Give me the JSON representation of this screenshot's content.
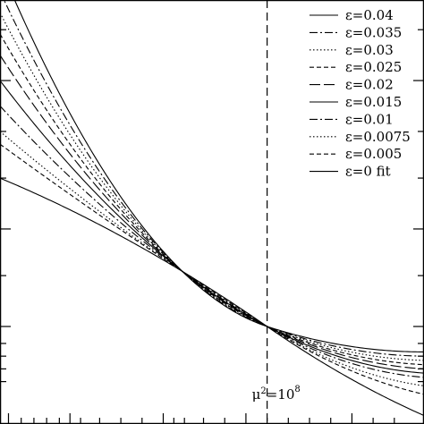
{
  "chart_data": {
    "type": "line",
    "title": "",
    "xlabel": "",
    "ylabel": "",
    "xlim": [
      0,
      1
    ],
    "ylim": [
      0,
      1
    ],
    "log_x": false,
    "grid": false,
    "legend_position": "top-right",
    "reference_line": {
      "x": 0.63,
      "style": "dashed",
      "label_base": "μ",
      "label_exp": "2",
      "label_eq": "=10",
      "label_pow": "8"
    },
    "crossing_points": [
      {
        "x": 0.43,
        "y": 0.36
      },
      {
        "x": 0.63,
        "y": 0.23
      }
    ],
    "series": [
      {
        "name": "ε=0.04",
        "style": "solid",
        "left_y": 1.08,
        "right_y": 0.17
      },
      {
        "name": "ε=0.035",
        "style": "dashdot",
        "left_y": 1.02,
        "right_y": 0.16
      },
      {
        "name": "ε=0.03",
        "style": "dotted",
        "left_y": 0.97,
        "right_y": 0.15
      },
      {
        "name": "ε=0.025",
        "style": "dashed",
        "left_y": 0.92,
        "right_y": 0.14
      },
      {
        "name": "ε=0.02",
        "style": "longdash",
        "left_y": 0.87,
        "right_y": 0.13
      },
      {
        "name": "ε=0.015",
        "style": "solid",
        "left_y": 0.81,
        "right_y": 0.12
      },
      {
        "name": "ε=0.01",
        "style": "dashdot",
        "left_y": 0.75,
        "right_y": 0.11
      },
      {
        "name": "ε=0.0075",
        "style": "dotted",
        "left_y": 0.69,
        "right_y": 0.09
      },
      {
        "name": "ε=0.005",
        "style": "dashed",
        "left_y": 0.66,
        "right_y": 0.07
      },
      {
        "name": "ε=0 fit",
        "style": "solid",
        "left_y": 0.58,
        "right_y": 0.02
      }
    ]
  }
}
